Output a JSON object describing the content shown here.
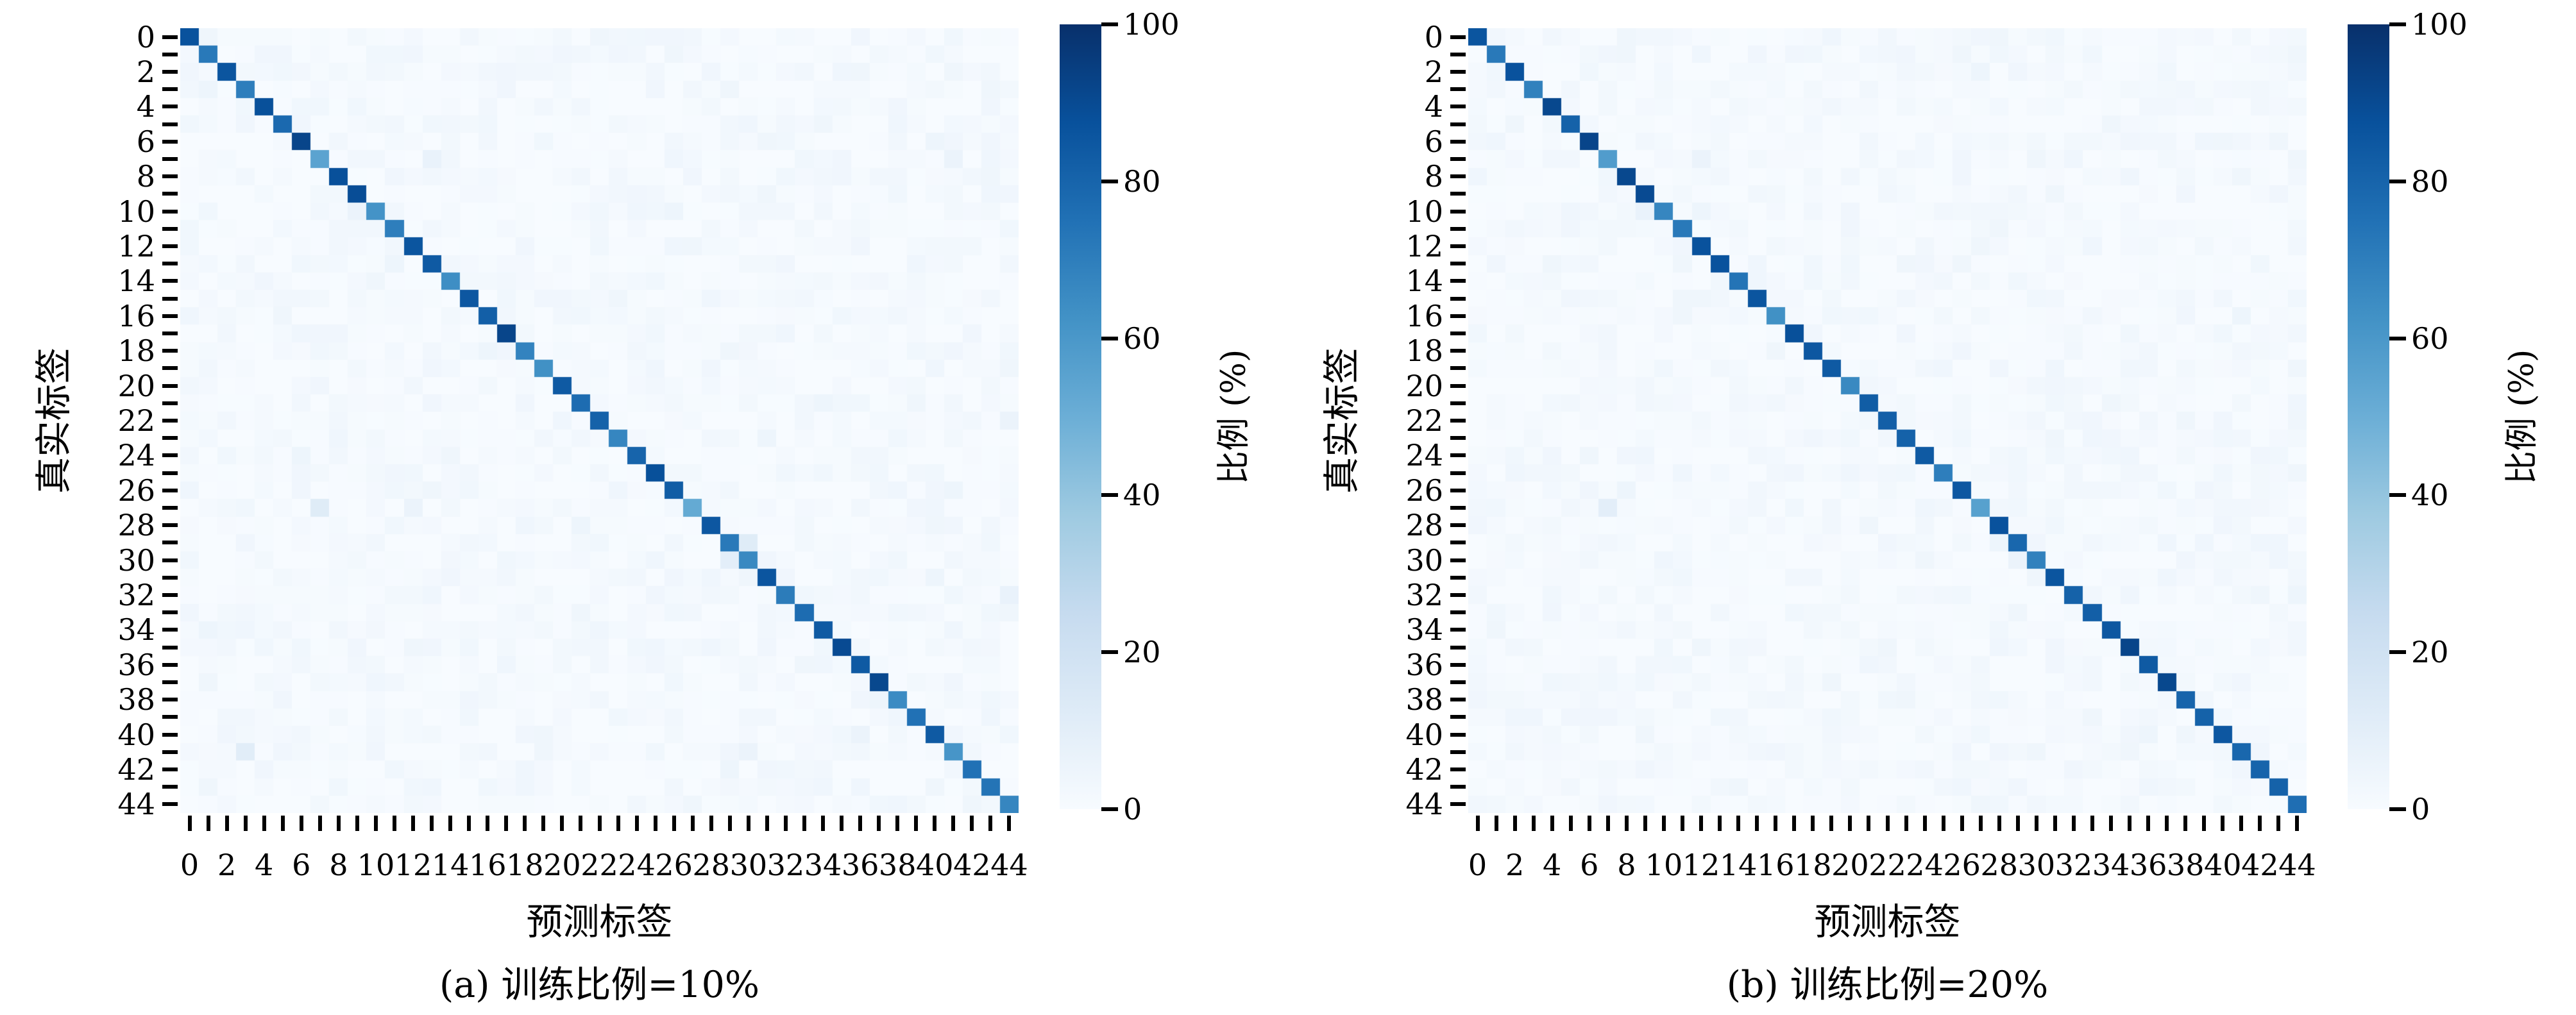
{
  "figure": {
    "kind": "confusion-matrix-pair",
    "background": "#ffffff",
    "text_color": "#000000"
  },
  "chart_data": [
    {
      "type": "heatmap",
      "caption": "(a) 训练比例=10%",
      "xlabel": "预测标签",
      "ylabel": "真实标签",
      "colorbar_label": "比例 (%)",
      "n_classes": 45,
      "tick_values": [
        0,
        2,
        4,
        6,
        8,
        10,
        12,
        14,
        16,
        18,
        20,
        22,
        24,
        26,
        28,
        30,
        32,
        34,
        36,
        38,
        40,
        42,
        44
      ],
      "colorbar_ticks": [
        0,
        20,
        40,
        60,
        80,
        100
      ],
      "value_range": [
        0,
        100
      ],
      "colormap": "Blues",
      "colormap_stops": [
        [
          0,
          "#f7fbff"
        ],
        [
          0.125,
          "#deebf7"
        ],
        [
          0.25,
          "#c6dbef"
        ],
        [
          0.375,
          "#9ecae1"
        ],
        [
          0.5,
          "#6baed6"
        ],
        [
          0.625,
          "#4292c6"
        ],
        [
          0.75,
          "#2171b5"
        ],
        [
          0.875,
          "#08519c"
        ],
        [
          1,
          "#08306b"
        ]
      ],
      "diagonal_pct": [
        87,
        72,
        86,
        70,
        88,
        78,
        92,
        55,
        88,
        89,
        62,
        70,
        86,
        84,
        64,
        85,
        82,
        92,
        68,
        63,
        84,
        77,
        81,
        67,
        80,
        88,
        83,
        52,
        85,
        72,
        66,
        86,
        71,
        77,
        84,
        90,
        84,
        91,
        65,
        75,
        84,
        61,
        75,
        74,
        67
      ],
      "off_diagonal_pct": [
        [
          7,
          13,
          7
        ],
        [
          27,
          7,
          12
        ],
        [
          29,
          30,
          12
        ],
        [
          30,
          29,
          10
        ],
        [
          41,
          3,
          11
        ],
        [
          3,
          1,
          5
        ],
        [
          10,
          9,
          6
        ],
        [
          13,
          11,
          5
        ],
        [
          1,
          26,
          4
        ],
        [
          5,
          34,
          4
        ],
        [
          6,
          40,
          5
        ],
        [
          7,
          41,
          6
        ],
        [
          10,
          26,
          5
        ],
        [
          14,
          10,
          4
        ],
        [
          18,
          16,
          5
        ],
        [
          19,
          44,
          4
        ],
        [
          21,
          34,
          5
        ],
        [
          22,
          44,
          6
        ],
        [
          23,
          31,
          5
        ],
        [
          26,
          41,
          5
        ],
        [
          27,
          12,
          6
        ],
        [
          28,
          21,
          5
        ],
        [
          31,
          40,
          5
        ],
        [
          32,
          44,
          7
        ],
        [
          34,
          1,
          5
        ],
        [
          36,
          33,
          4
        ],
        [
          38,
          37,
          5
        ],
        [
          41,
          30,
          6
        ],
        [
          42,
          29,
          5
        ],
        [
          40,
          36,
          6
        ],
        [
          44,
          27,
          4
        ],
        [
          12,
          27,
          4
        ],
        [
          16,
          5,
          4
        ],
        [
          2,
          41,
          4
        ],
        [
          0,
          22,
          4
        ],
        [
          24,
          6,
          5
        ],
        [
          33,
          21,
          4
        ],
        [
          35,
          12,
          4
        ],
        [
          9,
          31,
          4
        ],
        [
          43,
          1,
          4
        ]
      ],
      "background_noise_pct_max": 4
    },
    {
      "type": "heatmap",
      "caption": "(b) 训练比例=20%",
      "xlabel": "预测标签",
      "ylabel": "真实标签",
      "colorbar_label": "比例 (%)",
      "n_classes": 45,
      "tick_values": [
        0,
        2,
        4,
        6,
        8,
        10,
        12,
        14,
        16,
        18,
        20,
        22,
        24,
        26,
        28,
        30,
        32,
        34,
        36,
        38,
        40,
        42,
        44
      ],
      "colorbar_ticks": [
        0,
        20,
        40,
        60,
        80,
        100
      ],
      "value_range": [
        0,
        100
      ],
      "colormap": "Blues",
      "colormap_stops": [
        [
          0,
          "#f7fbff"
        ],
        [
          0.125,
          "#deebf7"
        ],
        [
          0.25,
          "#c6dbef"
        ],
        [
          0.375,
          "#9ecae1"
        ],
        [
          0.5,
          "#6baed6"
        ],
        [
          0.625,
          "#4292c6"
        ],
        [
          0.75,
          "#2171b5"
        ],
        [
          0.875,
          "#08519c"
        ],
        [
          1,
          "#08306b"
        ]
      ],
      "diagonal_pct": [
        86,
        72,
        87,
        69,
        91,
        81,
        92,
        58,
        91,
        90,
        67,
        72,
        87,
        87,
        74,
        86,
        63,
        88,
        85,
        84,
        66,
        83,
        82,
        81,
        84,
        70,
        85,
        56,
        87,
        79,
        69,
        86,
        81,
        82,
        85,
        92,
        84,
        91,
        80,
        81,
        85,
        79,
        80,
        81,
        76
      ],
      "off_diagonal_pct": [
        [
          27,
          7,
          10
        ],
        [
          7,
          12,
          6
        ],
        [
          10,
          9,
          7
        ],
        [
          10,
          12,
          5
        ],
        [
          2,
          27,
          5
        ],
        [
          7,
          44,
          4
        ],
        [
          16,
          41,
          5
        ],
        [
          29,
          28,
          5
        ],
        [
          30,
          29,
          6
        ],
        [
          21,
          34,
          4
        ],
        [
          23,
          31,
          4
        ],
        [
          26,
          8,
          5
        ],
        [
          13,
          11,
          4
        ],
        [
          18,
          16,
          4
        ],
        [
          32,
          44,
          5
        ],
        [
          34,
          1,
          4
        ],
        [
          38,
          23,
          4
        ],
        [
          41,
          30,
          4
        ],
        [
          12,
          27,
          4
        ],
        [
          5,
          34,
          4
        ],
        [
          1,
          26,
          4
        ],
        [
          22,
          44,
          4
        ],
        [
          24,
          6,
          4
        ],
        [
          44,
          27,
          4
        ],
        [
          9,
          31,
          4
        ],
        [
          35,
          12,
          4
        ],
        [
          40,
          36,
          5
        ],
        [
          28,
          21,
          4
        ],
        [
          19,
          44,
          4
        ],
        [
          6,
          40,
          4
        ]
      ],
      "background_noise_pct_max": 4
    }
  ]
}
